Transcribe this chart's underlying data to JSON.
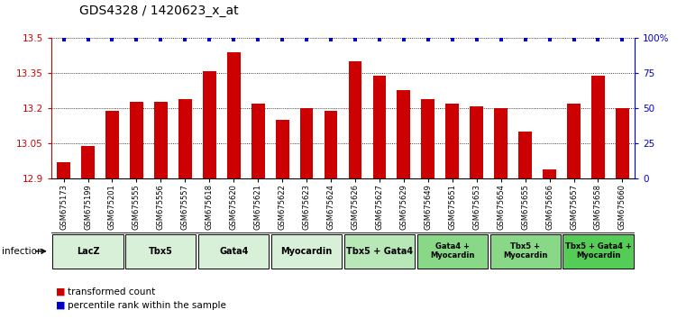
{
  "title": "GDS4328 / 1420623_x_at",
  "samples": [
    "GSM675173",
    "GSM675199",
    "GSM675201",
    "GSM675555",
    "GSM675556",
    "GSM675557",
    "GSM675618",
    "GSM675620",
    "GSM675621",
    "GSM675622",
    "GSM675623",
    "GSM675624",
    "GSM675626",
    "GSM675627",
    "GSM675629",
    "GSM675649",
    "GSM675651",
    "GSM675653",
    "GSM675654",
    "GSM675655",
    "GSM675656",
    "GSM675657",
    "GSM675658",
    "GSM675660"
  ],
  "values": [
    12.97,
    13.04,
    13.19,
    13.23,
    13.23,
    13.24,
    13.36,
    13.44,
    13.22,
    13.15,
    13.2,
    13.19,
    13.4,
    13.34,
    13.28,
    13.24,
    13.22,
    13.21,
    13.2,
    13.1,
    12.94,
    13.22,
    13.34,
    13.2
  ],
  "bar_color": "#cc0000",
  "percentile_color": "#0000cc",
  "ylim": [
    12.9,
    13.5
  ],
  "y_ticks": [
    12.9,
    13.05,
    13.2,
    13.35,
    13.5
  ],
  "y_tick_labels": [
    "12.9",
    "13.05",
    "13.2",
    "13.35",
    "13.5"
  ],
  "right_y_ticks": [
    0,
    25,
    50,
    75,
    100
  ],
  "right_y_tick_labels": [
    "0",
    "25",
    "50",
    "75",
    "100%"
  ],
  "groups": [
    {
      "label": "LacZ",
      "start": 0,
      "end": 2,
      "color": "#d8f0d8"
    },
    {
      "label": "Tbx5",
      "start": 3,
      "end": 5,
      "color": "#d8f0d8"
    },
    {
      "label": "Gata4",
      "start": 6,
      "end": 8,
      "color": "#d8f0d8"
    },
    {
      "label": "Myocardin",
      "start": 9,
      "end": 11,
      "color": "#d8f0d8"
    },
    {
      "label": "Tbx5 + Gata4",
      "start": 12,
      "end": 14,
      "color": "#b8e8b8"
    },
    {
      "label": "Gata4 +\nMyocardin",
      "start": 15,
      "end": 17,
      "color": "#88d888"
    },
    {
      "label": "Tbx5 +\nMyocardin",
      "start": 18,
      "end": 20,
      "color": "#88d888"
    },
    {
      "label": "Tbx5 + Gata4 +\nMyocardin",
      "start": 21,
      "end": 23,
      "color": "#55cc55"
    }
  ],
  "infection_label": "infection",
  "legend_tc": "transformed count",
  "legend_pr": "percentile rank within the sample",
  "background_color": "#ffffff"
}
